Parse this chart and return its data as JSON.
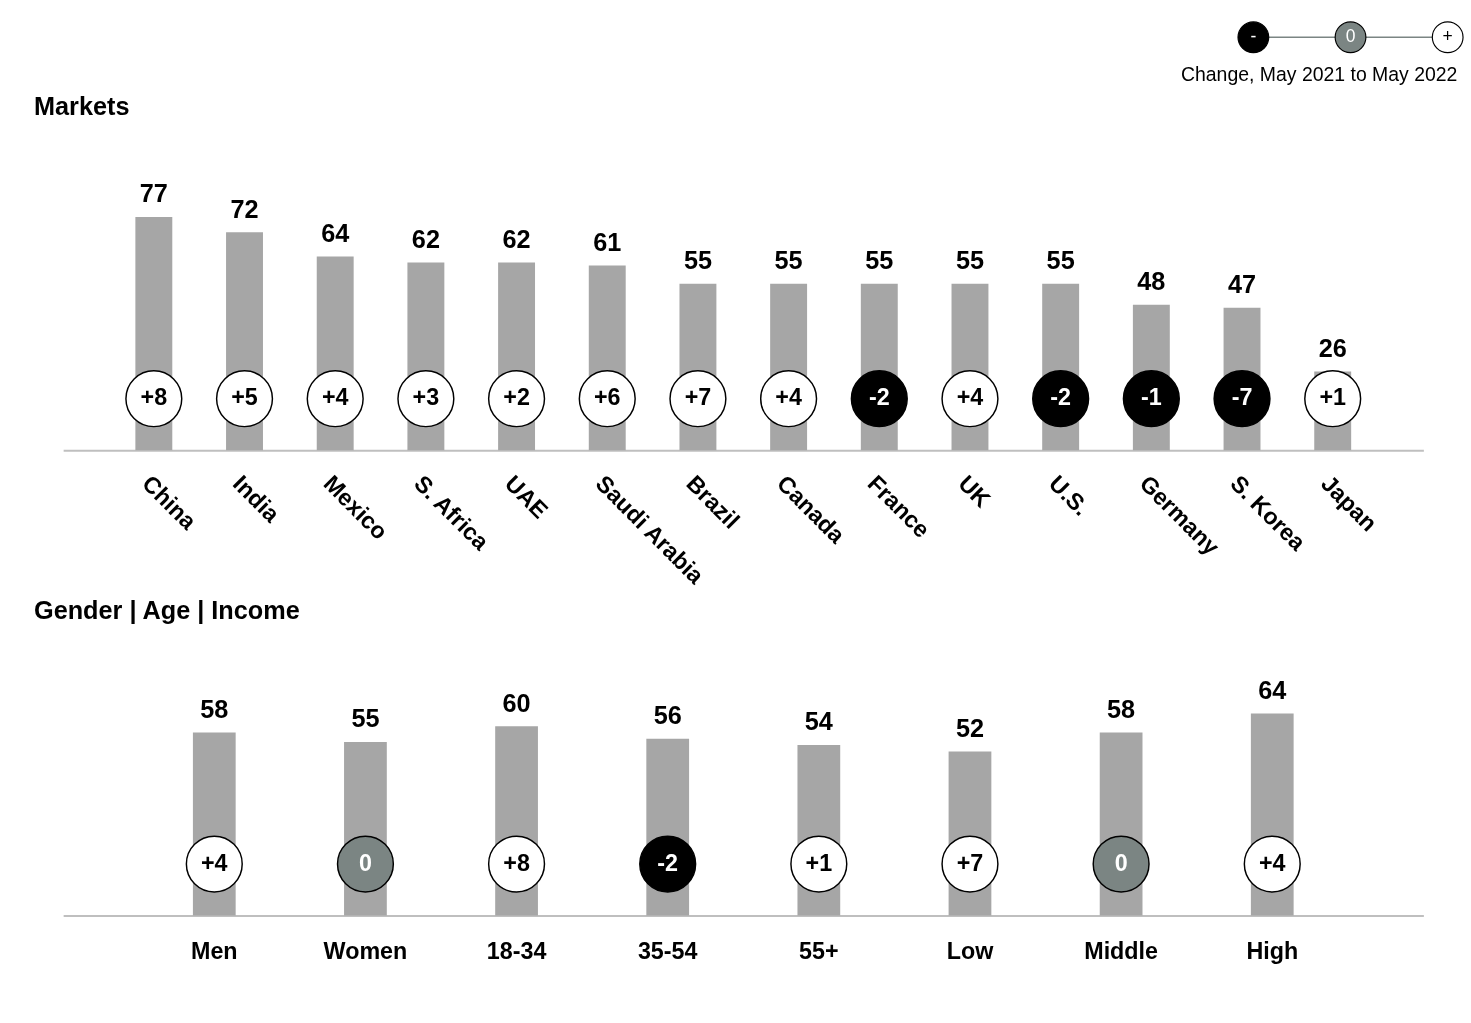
{
  "chart_data": [
    {
      "type": "bar",
      "title": "Markets",
      "categories": [
        "China",
        "India",
        "Mexico",
        "S. Africa",
        "UAE",
        "Saudi Arabia",
        "Brazil",
        "Canada",
        "France",
        "UK",
        "U.S.",
        "Germany",
        "S. Korea",
        "Japan"
      ],
      "series": [
        {
          "color": "#a6a6a6",
          "values": [
            77,
            72,
            64,
            62,
            62,
            61,
            55,
            55,
            55,
            55,
            55,
            48,
            47,
            26
          ]
        }
      ],
      "data_labels": true,
      "legend_title": "Change, May 2021 to May 2022",
      "annotations": [
        "-",
        "0",
        "+",
        "+8",
        "+5",
        "+4",
        "+3",
        "+2",
        "+6",
        "+7",
        "+4",
        "-2",
        "+4",
        "-2",
        "-1",
        "-7",
        "+1"
      ]
    },
    {
      "type": "bar",
      "title": "Gender | Age | Income",
      "categories": [
        "Men",
        "Women",
        "18-34",
        "35-54",
        "55+",
        "Low",
        "Middle",
        "High"
      ],
      "series": [
        {
          "color": "#a6a6a6",
          "values": [
            58,
            55,
            60,
            56,
            54,
            52,
            58,
            64
          ]
        }
      ],
      "data_labels": true,
      "annotations": [
        "+4",
        "0",
        "+8",
        "-2",
        "+1",
        "+7",
        "0",
        "+4"
      ]
    }
  ]
}
